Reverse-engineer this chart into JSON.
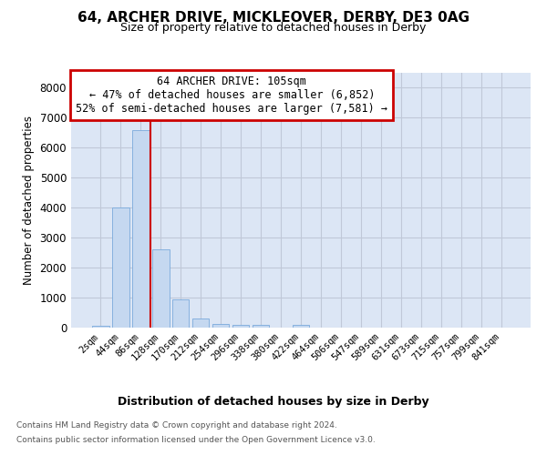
{
  "title1": "64, ARCHER DRIVE, MICKLEOVER, DERBY, DE3 0AG",
  "title2": "Size of property relative to detached houses in Derby",
  "xlabel": "Distribution of detached houses by size in Derby",
  "ylabel": "Number of detached properties",
  "categories": [
    "2sqm",
    "44sqm",
    "86sqm",
    "128sqm",
    "170sqm",
    "212sqm",
    "254sqm",
    "296sqm",
    "338sqm",
    "380sqm",
    "422sqm",
    "464sqm",
    "506sqm",
    "547sqm",
    "589sqm",
    "631sqm",
    "673sqm",
    "715sqm",
    "757sqm",
    "799sqm",
    "841sqm"
  ],
  "values": [
    70,
    4000,
    6600,
    2600,
    950,
    310,
    130,
    90,
    80,
    0,
    80,
    0,
    0,
    0,
    0,
    0,
    0,
    0,
    0,
    0,
    0
  ],
  "bar_color": "#c5d8f0",
  "bar_edge_color": "#7aaadc",
  "annotation_title": "64 ARCHER DRIVE: 105sqm",
  "annotation_line1": "← 47% of detached houses are smaller (6,852)",
  "annotation_line2": "52% of semi-detached houses are larger (7,581) →",
  "annotation_box_color": "#ffffff",
  "annotation_box_edge": "#cc0000",
  "red_line_color": "#cc0000",
  "grid_color": "#c0c8d8",
  "background_color": "#e8eef8",
  "plot_background": "#dce6f5",
  "ylim": [
    0,
    8500
  ],
  "yticks": [
    0,
    1000,
    2000,
    3000,
    4000,
    5000,
    6000,
    7000,
    8000
  ],
  "footer1": "Contains HM Land Registry data © Crown copyright and database right 2024.",
  "footer2": "Contains public sector information licensed under the Open Government Licence v3.0."
}
